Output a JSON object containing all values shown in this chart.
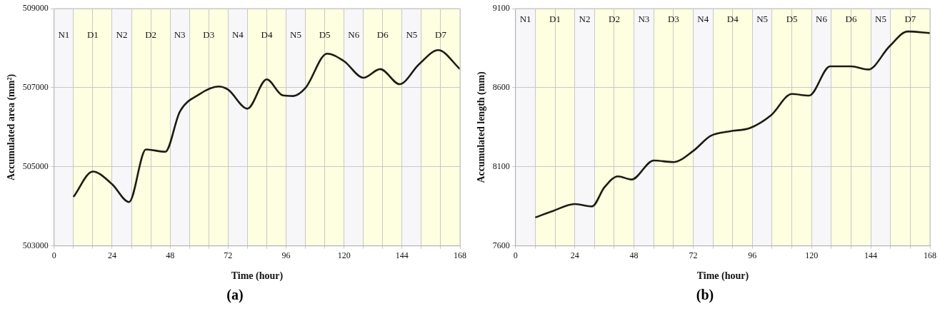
{
  "chart_data": [
    {
      "type": "line",
      "xlabel": "Time (hour)",
      "ylabel": "Accumulated area (mm²)",
      "annotations": [
        "(a)"
      ],
      "series": [
        {
          "color": "#1c1c12",
          "x": [
            8,
            16,
            24,
            31,
            38,
            46,
            52,
            60,
            68,
            72,
            80,
            88,
            94.5,
            99,
            104,
            113,
            120,
            128,
            135,
            143,
            151,
            159,
            168
          ],
          "values": [
            504240,
            504880,
            504560,
            504110,
            505440,
            505380,
            506390,
            506830,
            507030,
            506950,
            506470,
            507210,
            506810,
            506790,
            506990,
            507860,
            507670,
            507250,
            507470,
            507090,
            507590,
            507950,
            507470
          ]
        }
      ],
      "xlim": [
        0,
        168
      ],
      "ylim": [
        503000,
        509000
      ],
      "yticks": [
        503000,
        505000,
        507000,
        509000
      ],
      "xticks": [
        0,
        {
          "value": 8,
          "label": null
        },
        {
          "value": 16,
          "label": null
        },
        24,
        {
          "value": 32,
          "label": null
        },
        {
          "value": 40,
          "label": null
        },
        48,
        {
          "value": 56,
          "label": null
        },
        {
          "value": 64,
          "label": null
        },
        72,
        {
          "value": 80,
          "label": null
        },
        {
          "value": 88,
          "label": null
        },
        96,
        {
          "value": 104,
          "label": null
        },
        {
          "value": 112,
          "label": null
        },
        120,
        {
          "value": 128,
          "label": null
        },
        {
          "value": 136,
          "label": null
        },
        144,
        {
          "value": 152,
          "label": null
        },
        {
          "value": 160,
          "label": null
        },
        168
      ],
      "bands": [
        {
          "axis": "x",
          "from": 0,
          "to": 8,
          "label": "N1",
          "color": "#f7f7f9"
        },
        {
          "axis": "x",
          "from": 8,
          "to": 24,
          "label": "D1",
          "color": "#fefee0"
        },
        {
          "axis": "x",
          "from": 24,
          "to": 32,
          "label": "N2",
          "color": "#f7f7f9"
        },
        {
          "axis": "x",
          "from": 32,
          "to": 48,
          "label": "D2",
          "color": "#fefee0"
        },
        {
          "axis": "x",
          "from": 48,
          "to": 56,
          "label": "N3",
          "color": "#f7f7f9"
        },
        {
          "axis": "x",
          "from": 56,
          "to": 72,
          "label": "D3",
          "color": "#fefee0"
        },
        {
          "axis": "x",
          "from": 72,
          "to": 80,
          "label": "N4",
          "color": "#f7f7f9"
        },
        {
          "axis": "x",
          "from": 80,
          "to": 96,
          "label": "D4",
          "color": "#fefee0"
        },
        {
          "axis": "x",
          "from": 96,
          "to": 104,
          "label": "N5",
          "color": "#f7f7f9"
        },
        {
          "axis": "x",
          "from": 104,
          "to": 120,
          "label": "D5",
          "color": "#fefee0"
        },
        {
          "axis": "x",
          "from": 120,
          "to": 128,
          "label": "N6",
          "color": "#f7f7f9"
        },
        {
          "axis": "x",
          "from": 128,
          "to": 144,
          "label": "D6",
          "color": "#fefee0"
        },
        {
          "axis": "x",
          "from": 144,
          "to": 152,
          "label": "N5",
          "color": "#f7f7f9"
        },
        {
          "axis": "x",
          "from": 152,
          "to": 168,
          "label": "D7",
          "color": "#fefee0"
        }
      ],
      "grid": true,
      "legend": false,
      "marker": "none",
      "line_style": "solid"
    },
    {
      "type": "line",
      "xlabel": "Time (hour)",
      "ylabel": "Accumulated length (mm)",
      "annotations": [
        "(b)"
      ],
      "series": [
        {
          "color": "#1c1c12",
          "x": [
            8,
            15,
            24,
            31,
            36,
            41.5,
            47,
            56,
            64,
            72,
            79,
            87,
            95,
            103.5,
            112,
            119,
            127.5,
            136,
            143,
            151.5,
            159,
            168
          ],
          "values": [
            7780,
            7820,
            7865,
            7850,
            7970,
            8040,
            8020,
            8140,
            8130,
            8200,
            8295,
            8325,
            8345,
            8425,
            8560,
            8550,
            8735,
            8735,
            8715,
            8860,
            8955,
            8945
          ]
        }
      ],
      "xlim": [
        0,
        168
      ],
      "ylim": [
        7600,
        9100
      ],
      "yticks": [
        7600,
        8100,
        8600,
        9100
      ],
      "xticks": [
        0,
        {
          "value": 8,
          "label": null
        },
        {
          "value": 16,
          "label": null
        },
        24,
        {
          "value": 32,
          "label": null
        },
        {
          "value": 40,
          "label": null
        },
        48,
        {
          "value": 56,
          "label": null
        },
        {
          "value": 64,
          "label": null
        },
        72,
        {
          "value": 80,
          "label": null
        },
        {
          "value": 88,
          "label": null
        },
        96,
        {
          "value": 104,
          "label": null
        },
        {
          "value": 112,
          "label": null
        },
        120,
        {
          "value": 128,
          "label": null
        },
        {
          "value": 136,
          "label": null
        },
        144,
        {
          "value": 152,
          "label": null
        },
        {
          "value": 160,
          "label": null
        },
        168
      ],
      "bands": [
        {
          "axis": "x",
          "from": 0,
          "to": 8,
          "label": "N1",
          "color": "#f7f7f9"
        },
        {
          "axis": "x",
          "from": 8,
          "to": 24,
          "label": "D1",
          "color": "#fefee0"
        },
        {
          "axis": "x",
          "from": 24,
          "to": 32,
          "label": "N2",
          "color": "#f7f7f9"
        },
        {
          "axis": "x",
          "from": 32,
          "to": 48,
          "label": "D2",
          "color": "#fefee0"
        },
        {
          "axis": "x",
          "from": 48,
          "to": 56,
          "label": "N3",
          "color": "#f7f7f9"
        },
        {
          "axis": "x",
          "from": 56,
          "to": 72,
          "label": "D3",
          "color": "#fefee0"
        },
        {
          "axis": "x",
          "from": 72,
          "to": 80,
          "label": "N4",
          "color": "#f7f7f9"
        },
        {
          "axis": "x",
          "from": 80,
          "to": 96,
          "label": "D4",
          "color": "#fefee0"
        },
        {
          "axis": "x",
          "from": 96,
          "to": 104,
          "label": "N5",
          "color": "#f7f7f9"
        },
        {
          "axis": "x",
          "from": 104,
          "to": 120,
          "label": "D5",
          "color": "#fefee0"
        },
        {
          "axis": "x",
          "from": 120,
          "to": 128,
          "label": "N6",
          "color": "#f7f7f9"
        },
        {
          "axis": "x",
          "from": 128,
          "to": 144,
          "label": "D6",
          "color": "#fefee0"
        },
        {
          "axis": "x",
          "from": 144,
          "to": 152,
          "label": "N5",
          "color": "#f7f7f9"
        },
        {
          "axis": "x",
          "from": 152,
          "to": 168,
          "label": "D7",
          "color": "#fefee0"
        }
      ],
      "grid": true,
      "legend": false,
      "marker": "none",
      "line_style": "solid"
    }
  ]
}
